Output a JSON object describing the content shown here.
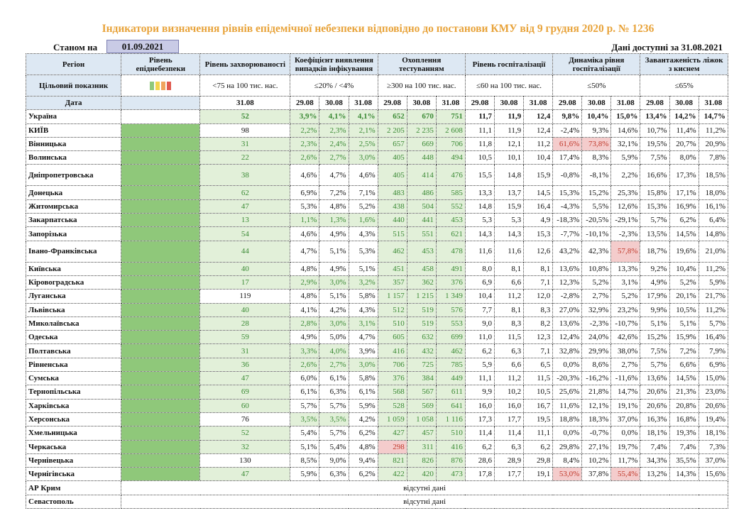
{
  "title": "Індикатори визначення рівнів епідемічної небезпеки відповідно до постанови КМУ від 9 грудня 2020 р. № 1236",
  "as_of_label": "Станом на",
  "as_of_date": "01.09.2021",
  "data_available": "Дані доступні за  31.08.2021",
  "headers": {
    "region": "Регіон",
    "level": "Рівень епіднебезпеки",
    "incidence": "Рівень захворюваності",
    "detection": "Коефіцієнт виявлення випадків інфікування",
    "testing": "Охоплення тестуванням",
    "hospitalization": "Рівень госпіталізації",
    "dynamics": "Динаміка рівня госпіталізації",
    "occupancy": "Завантаженість ліжок з киснем"
  },
  "target": {
    "label": "Цільовий показник",
    "incidence": "<75 на 100 тис. нас.",
    "detection": "≤20% / <4%",
    "testing": "≥300 на 100 тис. нас.",
    "hospitalization": "≤60 на 100 тис. нас.",
    "dynamics": "≤50%",
    "occupancy": "≤65%"
  },
  "date_row": {
    "label": "Дата",
    "incidence": "31.08",
    "d1": "29.08",
    "d2": "30.08",
    "d3": "31.08"
  },
  "colors": {
    "green": "#8fc87a",
    "yellow": "#f3d44b",
    "orange": "#f0a45e",
    "red": "#e05a4f"
  },
  "rows": [
    {
      "region": "Україна",
      "inc": "52",
      "det": [
        "3,9%",
        "4,1%",
        "4,1%"
      ],
      "test": [
        "652",
        "670",
        "751"
      ],
      "hosp": [
        "11,7",
        "11,9",
        "12,4"
      ],
      "dyn": [
        "9,8%",
        "10,4%",
        "15,0%"
      ],
      "occ": [
        "13,4%",
        "14,2%",
        "14,7%"
      ]
    },
    {
      "region": "КИЇВ",
      "inc": "98",
      "det": [
        "2,2%",
        "2,3%",
        "2,1%"
      ],
      "test": [
        "2 205",
        "2 235",
        "2 608"
      ],
      "hosp": [
        "11,1",
        "11,9",
        "12,4"
      ],
      "dyn": [
        "-2,4%",
        "9,3%",
        "14,6%"
      ],
      "occ": [
        "10,7%",
        "11,4%",
        "11,2%"
      ]
    },
    {
      "region": "Вінницька",
      "inc": "31",
      "det": [
        "2,3%",
        "2,4%",
        "2,5%"
      ],
      "test": [
        "657",
        "669",
        "706"
      ],
      "hosp": [
        "11,8",
        "12,1",
        "11,2"
      ],
      "dyn": [
        "61,6%",
        "73,8%",
        "32,1%"
      ],
      "occ": [
        "19,5%",
        "20,7%",
        "20,9%"
      ]
    },
    {
      "region": "Волинська",
      "inc": "22",
      "det": [
        "2,6%",
        "2,7%",
        "3,0%"
      ],
      "test": [
        "405",
        "448",
        "494"
      ],
      "hosp": [
        "10,5",
        "10,1",
        "10,4"
      ],
      "dyn": [
        "17,4%",
        "8,3%",
        "5,9%"
      ],
      "occ": [
        "7,5%",
        "8,0%",
        "7,8%"
      ]
    },
    {
      "region": "Дніпропетровська",
      "inc": "38",
      "det": [
        "4,6%",
        "4,7%",
        "4,6%"
      ],
      "test": [
        "405",
        "414",
        "476"
      ],
      "hosp": [
        "15,5",
        "14,8",
        "15,9"
      ],
      "dyn": [
        "-0,8%",
        "-8,1%",
        "2,2%"
      ],
      "occ": [
        "16,6%",
        "17,3%",
        "18,5%"
      ]
    },
    {
      "region": "Донецька",
      "inc": "62",
      "det": [
        "6,9%",
        "7,2%",
        "7,1%"
      ],
      "test": [
        "483",
        "486",
        "585"
      ],
      "hosp": [
        "13,3",
        "13,7",
        "14,5"
      ],
      "dyn": [
        "15,3%",
        "15,2%",
        "25,3%"
      ],
      "occ": [
        "15,8%",
        "17,1%",
        "18,0%"
      ]
    },
    {
      "region": "Житомирська",
      "inc": "47",
      "det": [
        "5,3%",
        "4,8%",
        "5,2%"
      ],
      "test": [
        "438",
        "504",
        "552"
      ],
      "hosp": [
        "14,8",
        "15,9",
        "16,4"
      ],
      "dyn": [
        "-4,3%",
        "5,5%",
        "12,6%"
      ],
      "occ": [
        "15,3%",
        "16,9%",
        "16,1%"
      ]
    },
    {
      "region": "Закарпатська",
      "inc": "13",
      "det": [
        "1,1%",
        "1,3%",
        "1,6%"
      ],
      "test": [
        "440",
        "441",
        "453"
      ],
      "hosp": [
        "5,3",
        "5,3",
        "4,9"
      ],
      "dyn": [
        "-18,3%",
        "-20,5%",
        "-29,1%"
      ],
      "occ": [
        "5,7%",
        "6,2%",
        "6,4%"
      ]
    },
    {
      "region": "Запорізька",
      "inc": "54",
      "det": [
        "4,6%",
        "4,9%",
        "4,3%"
      ],
      "test": [
        "515",
        "551",
        "621"
      ],
      "hosp": [
        "14,3",
        "14,3",
        "15,3"
      ],
      "dyn": [
        "-7,7%",
        "-10,1%",
        "-2,3%"
      ],
      "occ": [
        "13,5%",
        "14,5%",
        "14,8%"
      ]
    },
    {
      "region": "Івано-Франківська",
      "inc": "44",
      "det": [
        "4,7%",
        "5,1%",
        "5,3%"
      ],
      "test": [
        "462",
        "453",
        "478"
      ],
      "hosp": [
        "11,6",
        "11,6",
        "12,6"
      ],
      "dyn": [
        "43,2%",
        "42,3%",
        "57,8%"
      ],
      "occ": [
        "18,7%",
        "19,6%",
        "21,0%"
      ]
    },
    {
      "region": "Київська",
      "inc": "40",
      "det": [
        "4,8%",
        "4,9%",
        "5,1%"
      ],
      "test": [
        "451",
        "458",
        "491"
      ],
      "hosp": [
        "8,0",
        "8,1",
        "8,1"
      ],
      "dyn": [
        "13,6%",
        "10,8%",
        "13,3%"
      ],
      "occ": [
        "9,2%",
        "10,4%",
        "11,2%"
      ]
    },
    {
      "region": "Кіровоградська",
      "inc": "17",
      "det": [
        "2,9%",
        "3,0%",
        "3,2%"
      ],
      "test": [
        "357",
        "362",
        "376"
      ],
      "hosp": [
        "6,9",
        "6,6",
        "7,1"
      ],
      "dyn": [
        "12,3%",
        "5,2%",
        "3,1%"
      ],
      "occ": [
        "4,9%",
        "5,2%",
        "5,9%"
      ]
    },
    {
      "region": "Луганська",
      "inc": "119",
      "det": [
        "4,8%",
        "5,1%",
        "5,8%"
      ],
      "test": [
        "1 157",
        "1 215",
        "1 349"
      ],
      "hosp": [
        "10,4",
        "11,2",
        "12,0"
      ],
      "dyn": [
        "-2,8%",
        "2,7%",
        "5,2%"
      ],
      "occ": [
        "17,9%",
        "20,1%",
        "21,7%"
      ]
    },
    {
      "region": "Львівська",
      "inc": "40",
      "det": [
        "4,1%",
        "4,2%",
        "4,3%"
      ],
      "test": [
        "512",
        "519",
        "576"
      ],
      "hosp": [
        "7,7",
        "8,1",
        "8,3"
      ],
      "dyn": [
        "27,0%",
        "32,9%",
        "23,2%"
      ],
      "occ": [
        "9,9%",
        "10,5%",
        "11,2%"
      ]
    },
    {
      "region": "Миколаївська",
      "inc": "28",
      "det": [
        "2,8%",
        "3,0%",
        "3,1%"
      ],
      "test": [
        "510",
        "519",
        "553"
      ],
      "hosp": [
        "9,0",
        "8,3",
        "8,2"
      ],
      "dyn": [
        "13,6%",
        "-2,3%",
        "-10,7%"
      ],
      "occ": [
        "5,1%",
        "5,1%",
        "5,7%"
      ]
    },
    {
      "region": "Одеська",
      "inc": "59",
      "det": [
        "4,9%",
        "5,0%",
        "4,7%"
      ],
      "test": [
        "605",
        "632",
        "699"
      ],
      "hosp": [
        "11,0",
        "11,5",
        "12,3"
      ],
      "dyn": [
        "12,4%",
        "24,0%",
        "42,6%"
      ],
      "occ": [
        "15,2%",
        "15,9%",
        "16,4%"
      ]
    },
    {
      "region": "Полтавська",
      "inc": "31",
      "det": [
        "3,3%",
        "4,0%",
        "3,9%"
      ],
      "test": [
        "416",
        "432",
        "462"
      ],
      "hosp": [
        "6,2",
        "6,3",
        "7,1"
      ],
      "dyn": [
        "32,8%",
        "29,9%",
        "38,0%"
      ],
      "occ": [
        "7,5%",
        "7,2%",
        "7,9%"
      ]
    },
    {
      "region": "Рівненська",
      "inc": "36",
      "det": [
        "2,6%",
        "2,7%",
        "3,0%"
      ],
      "test": [
        "706",
        "725",
        "785"
      ],
      "hosp": [
        "5,9",
        "6,6",
        "6,5"
      ],
      "dyn": [
        "0,0%",
        "8,6%",
        "2,7%"
      ],
      "occ": [
        "5,7%",
        "6,6%",
        "6,9%"
      ]
    },
    {
      "region": "Сумська",
      "inc": "47",
      "det": [
        "6,0%",
        "6,1%",
        "5,8%"
      ],
      "test": [
        "376",
        "384",
        "449"
      ],
      "hosp": [
        "11,1",
        "11,2",
        "11,5"
      ],
      "dyn": [
        "-20,3%",
        "-16,2%",
        "-11,6%"
      ],
      "occ": [
        "13,6%",
        "14,5%",
        "15,0%"
      ]
    },
    {
      "region": "Тернопільська",
      "inc": "69",
      "det": [
        "6,1%",
        "6,3%",
        "6,1%"
      ],
      "test": [
        "568",
        "567",
        "611"
      ],
      "hosp": [
        "9,9",
        "10,2",
        "10,5"
      ],
      "dyn": [
        "25,6%",
        "21,8%",
        "14,7%"
      ],
      "occ": [
        "20,6%",
        "21,3%",
        "23,0%"
      ]
    },
    {
      "region": "Харківська",
      "inc": "60",
      "det": [
        "5,7%",
        "5,7%",
        "5,9%"
      ],
      "test": [
        "528",
        "569",
        "641"
      ],
      "hosp": [
        "16,0",
        "16,0",
        "16,7"
      ],
      "dyn": [
        "11,6%",
        "12,1%",
        "19,1%"
      ],
      "occ": [
        "20,6%",
        "20,8%",
        "20,6%"
      ]
    },
    {
      "region": "Херсонська",
      "inc": "76",
      "det": [
        "3,5%",
        "3,5%",
        "4,2%"
      ],
      "test": [
        "1 059",
        "1 058",
        "1 116"
      ],
      "hosp": [
        "17,3",
        "17,7",
        "19,5"
      ],
      "dyn": [
        "18,8%",
        "18,3%",
        "37,0%"
      ],
      "occ": [
        "16,3%",
        "16,8%",
        "19,4%"
      ]
    },
    {
      "region": "Хмельницька",
      "inc": "52",
      "det": [
        "5,4%",
        "5,7%",
        "6,2%"
      ],
      "test": [
        "427",
        "457",
        "510"
      ],
      "hosp": [
        "11,4",
        "11,4",
        "11,1"
      ],
      "dyn": [
        "0,0%",
        "-0,7%",
        "0,0%"
      ],
      "occ": [
        "18,1%",
        "19,3%",
        "18,1%"
      ]
    },
    {
      "region": "Черкаська",
      "inc": "32",
      "det": [
        "5,1%",
        "5,4%",
        "4,8%"
      ],
      "test": [
        "298",
        "311",
        "416"
      ],
      "hosp": [
        "6,2",
        "6,3",
        "6,2"
      ],
      "dyn": [
        "29,8%",
        "27,1%",
        "19,7%"
      ],
      "occ": [
        "7,4%",
        "7,4%",
        "7,3%"
      ]
    },
    {
      "region": "Чернівецька",
      "inc": "130",
      "det": [
        "8,5%",
        "9,0%",
        "9,4%"
      ],
      "test": [
        "821",
        "826",
        "876"
      ],
      "hosp": [
        "28,6",
        "28,9",
        "29,8"
      ],
      "dyn": [
        "8,4%",
        "10,2%",
        "11,7%"
      ],
      "occ": [
        "34,3%",
        "35,5%",
        "37,0%"
      ]
    },
    {
      "region": "Чернігівська",
      "inc": "47",
      "det": [
        "5,9%",
        "6,3%",
        "6,2%"
      ],
      "test": [
        "422",
        "420",
        "473"
      ],
      "hosp": [
        "17,8",
        "17,7",
        "19,1"
      ],
      "dyn": [
        "53,0%",
        "37,8%",
        "55,4%"
      ],
      "occ": [
        "13,2%",
        "14,3%",
        "15,6%"
      ]
    }
  ],
  "absent_rows": [
    {
      "region": "АР Крим",
      "text": "відсутні дані"
    },
    {
      "region": "Севастополь",
      "text": "відсутні дані"
    }
  ]
}
